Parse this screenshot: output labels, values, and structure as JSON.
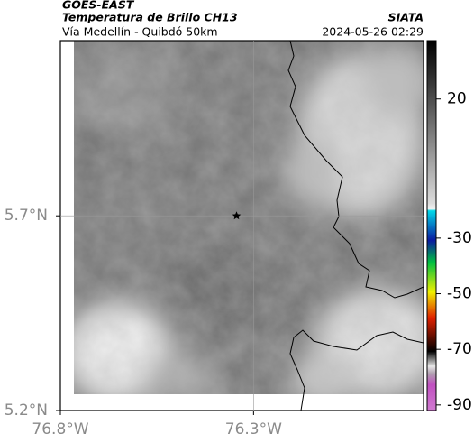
{
  "header": {
    "title": "GOES-EAST",
    "subtitle": "Temperatura de Brillo CH13",
    "source": "SIATA",
    "route": "Vía Medellín - Quibdó 50km",
    "datetime": "2024-05-26 02:29"
  },
  "map": {
    "xlim": [
      -76.8,
      -75.86
    ],
    "ylim": [
      5.2,
      6.15
    ],
    "xticks": [
      {
        "value": -76.8,
        "label": "76.8°W"
      },
      {
        "value": -76.3,
        "label": "76.3°W"
      }
    ],
    "yticks": [
      {
        "value": 5.2,
        "label": "5.2°N"
      },
      {
        "value": 5.7,
        "label": "5.7°N"
      }
    ],
    "grid": true,
    "marker": {
      "lon": -76.344,
      "lat": 5.7
    }
  },
  "colorbar": {
    "lim": [
      -92,
      41
    ],
    "ticks": [
      20,
      -30,
      -50,
      -70,
      -90
    ]
  }
}
